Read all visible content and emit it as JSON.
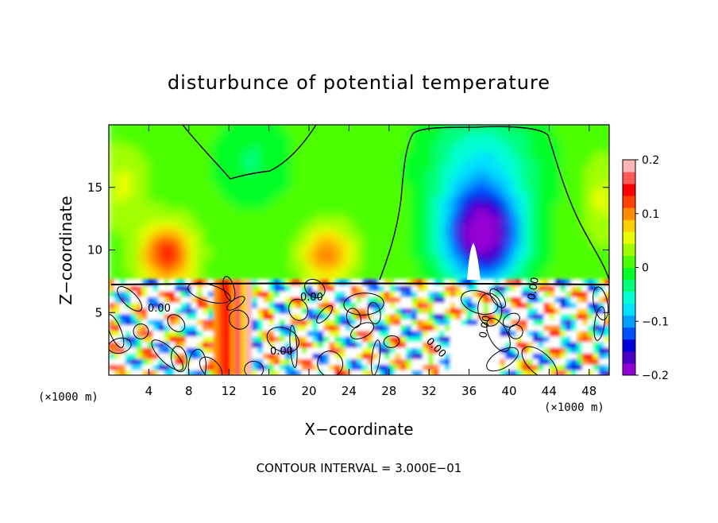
{
  "chart_data": {
    "type": "heatmap",
    "title": "disturbunce of potential temperature",
    "xlabel": "X−coordinate",
    "ylabel": "Z−coordinate",
    "x_unit": "(×1000 m)",
    "x_unit_right": "(×1000 m)",
    "footer": "CONTOUR INTERVAL = 3.000E−01",
    "xlim": [
      0,
      50
    ],
    "ylim": [
      0,
      20
    ],
    "xticks": [
      4,
      8,
      12,
      16,
      20,
      24,
      28,
      32,
      36,
      40,
      44,
      48
    ],
    "yticks": [
      5,
      10,
      15
    ],
    "colorbar": {
      "range": [
        -0.2,
        0.2
      ],
      "ticks": [
        "0.2",
        "0.1",
        "0",
        "−0.1",
        "−0.2"
      ],
      "colors": [
        "#9400d3",
        "#4b00c8",
        "#0000dc",
        "#0050ff",
        "#00a0ff",
        "#00e0ff",
        "#00ffd2",
        "#00ff7a",
        "#00ff28",
        "#4cff00",
        "#a0ff00",
        "#e8ff00",
        "#ffd000",
        "#ff8c00",
        "#ff4000",
        "#ff0000",
        "#ff5a5a",
        "#ffb4b4"
      ]
    },
    "contour_labels": [
      "0.00",
      "0.00",
      "0.00",
      "0.00",
      "0.00",
      "0.00"
    ]
  }
}
